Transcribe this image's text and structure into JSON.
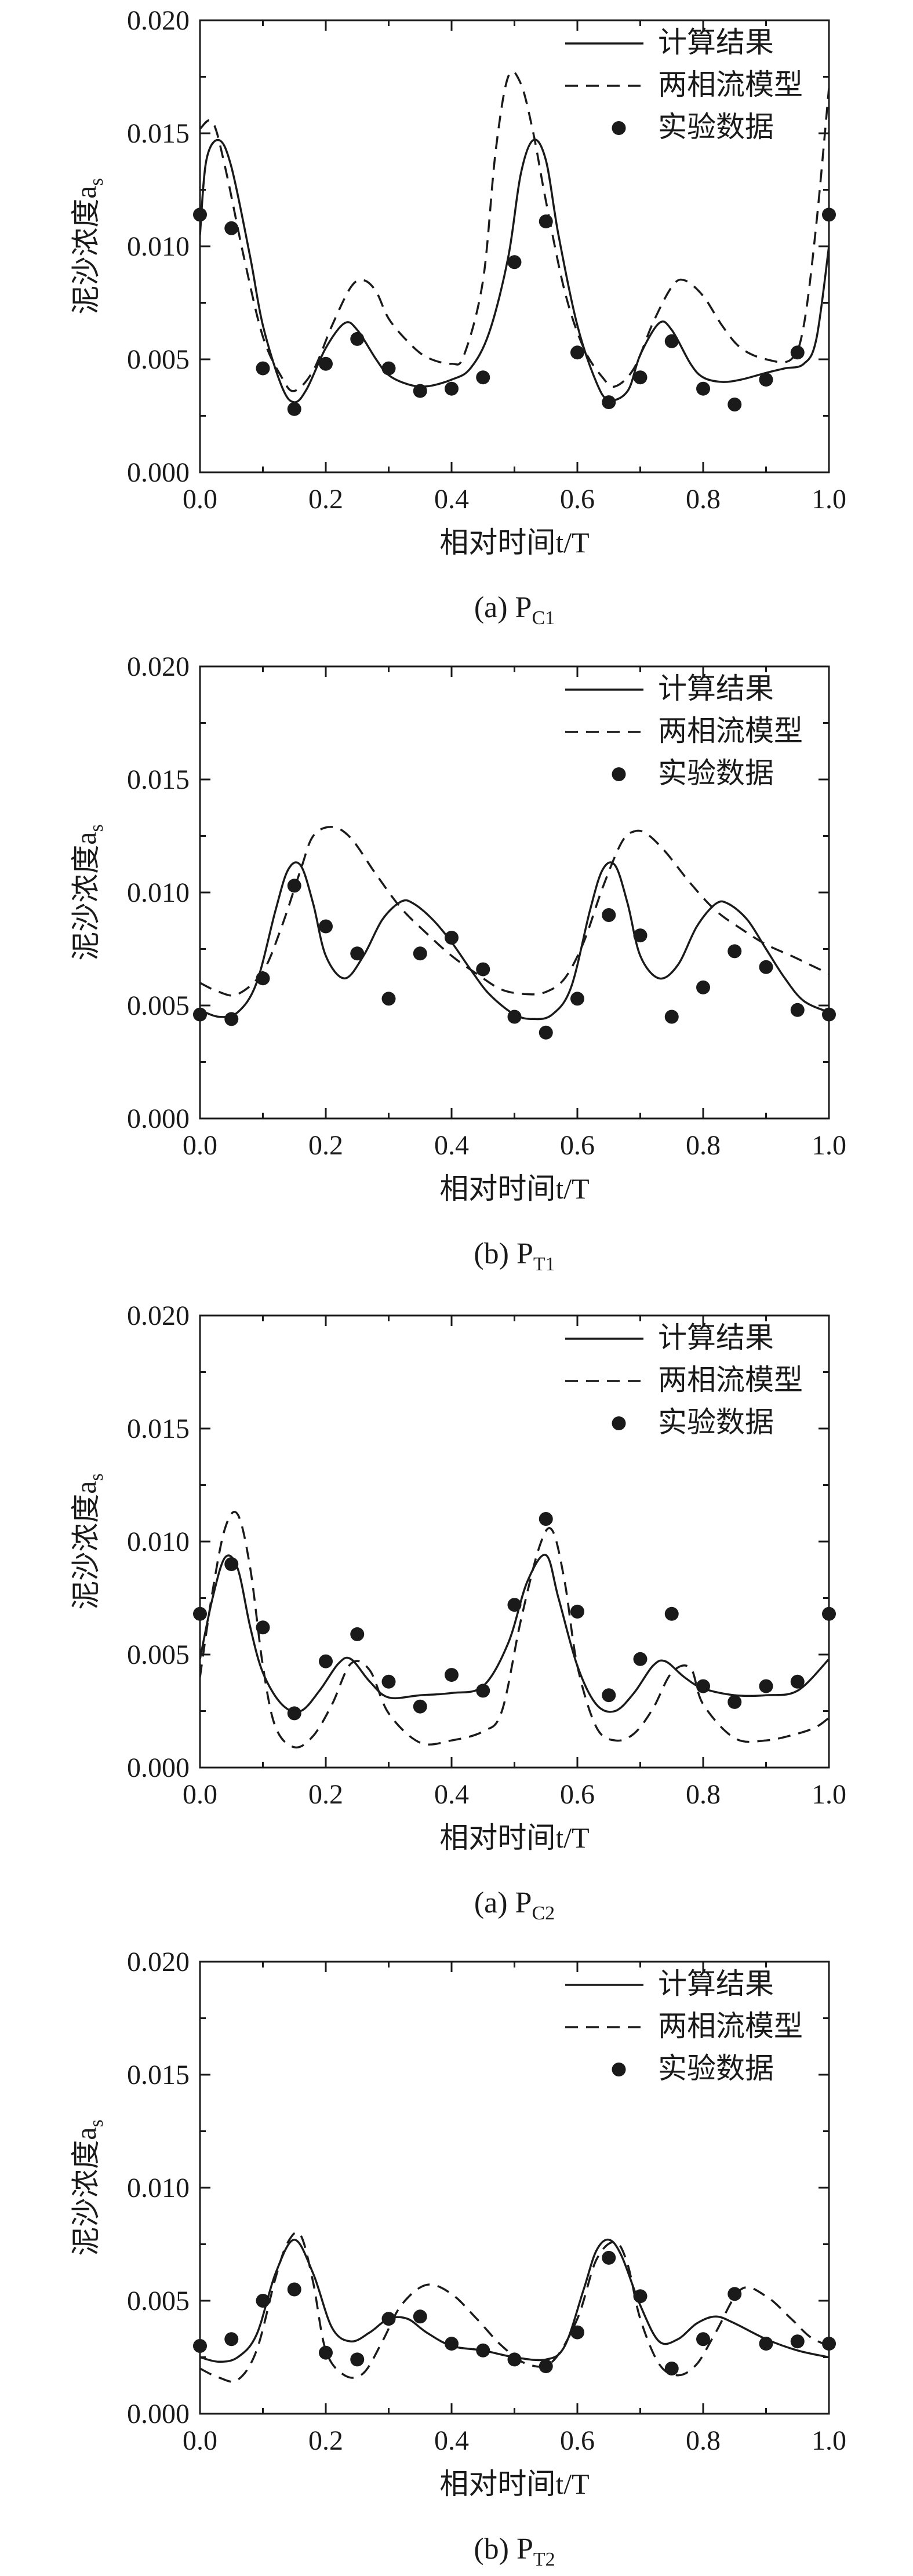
{
  "chart_data": [
    {
      "type": "line",
      "xlabel": "相对时间t/T",
      "ylabel": "泥沙浓度a",
      "ylabel_sub": "s",
      "caption": "(a) P",
      "caption_sub": "C1",
      "xlim": [
        0.0,
        1.0
      ],
      "ylim": [
        0.0,
        0.02
      ],
      "xticks": [
        "0.0",
        "0.2",
        "0.4",
        "0.6",
        "0.8",
        "1.0"
      ],
      "yticks": [
        "0.000",
        "0.005",
        "0.010",
        "0.015",
        "0.020"
      ],
      "legend": [
        "计算结果",
        "两相流模型",
        "实验数据"
      ],
      "legend_position": "top-right",
      "series": [
        {
          "name": "计算结果",
          "style": "solid",
          "x": [
            0.0,
            0.01,
            0.03,
            0.05,
            0.08,
            0.1,
            0.13,
            0.15,
            0.17,
            0.2,
            0.23,
            0.25,
            0.28,
            0.3,
            0.33,
            0.36,
            0.4,
            0.43,
            0.46,
            0.49,
            0.51,
            0.53,
            0.55,
            0.57,
            0.6,
            0.63,
            0.65,
            0.68,
            0.7,
            0.73,
            0.75,
            0.78,
            0.8,
            0.83,
            0.86,
            0.9,
            0.93,
            0.96,
            0.98,
            1.0
          ],
          "y": [
            0.0105,
            0.0138,
            0.0147,
            0.0135,
            0.0095,
            0.0065,
            0.0038,
            0.0031,
            0.0037,
            0.0055,
            0.0066,
            0.0063,
            0.005,
            0.0043,
            0.0039,
            0.0038,
            0.0041,
            0.0046,
            0.0062,
            0.0095,
            0.0132,
            0.0147,
            0.0138,
            0.0105,
            0.0065,
            0.004,
            0.0032,
            0.0036,
            0.0052,
            0.0066,
            0.0063,
            0.0048,
            0.0042,
            0.004,
            0.0041,
            0.0044,
            0.0046,
            0.0048,
            0.0059,
            0.01
          ]
        },
        {
          "name": "两相流模型",
          "style": "dashed",
          "x": [
            0.0,
            0.02,
            0.04,
            0.07,
            0.1,
            0.13,
            0.15,
            0.18,
            0.21,
            0.24,
            0.26,
            0.28,
            0.3,
            0.33,
            0.36,
            0.4,
            0.42,
            0.45,
            0.47,
            0.49,
            0.51,
            0.53,
            0.55,
            0.58,
            0.61,
            0.64,
            0.66,
            0.69,
            0.72,
            0.75,
            0.77,
            0.8,
            0.83,
            0.86,
            0.9,
            0.94,
            0.96,
            0.98,
            1.0
          ],
          "y": [
            0.0152,
            0.0155,
            0.0135,
            0.0095,
            0.006,
            0.0042,
            0.0036,
            0.0045,
            0.0065,
            0.0082,
            0.0085,
            0.008,
            0.0068,
            0.0058,
            0.0051,
            0.0048,
            0.0052,
            0.0085,
            0.0142,
            0.0175,
            0.0172,
            0.015,
            0.012,
            0.008,
            0.0055,
            0.0042,
            0.0038,
            0.0046,
            0.0066,
            0.0082,
            0.0085,
            0.0078,
            0.0065,
            0.0055,
            0.005,
            0.005,
            0.0065,
            0.011,
            0.017
          ]
        },
        {
          "name": "实验数据",
          "style": "markers",
          "x": [
            0.0,
            0.05,
            0.1,
            0.15,
            0.2,
            0.25,
            0.3,
            0.35,
            0.4,
            0.45,
            0.5,
            0.55,
            0.6,
            0.65,
            0.7,
            0.75,
            0.8,
            0.85,
            0.9,
            0.95,
            1.0
          ],
          "y": [
            0.0114,
            0.0108,
            0.0046,
            0.0028,
            0.0048,
            0.0059,
            0.0046,
            0.0036,
            0.0037,
            0.0042,
            0.0093,
            0.0111,
            0.0053,
            0.0031,
            0.0042,
            0.0058,
            0.0037,
            0.003,
            0.0041,
            0.0053,
            0.0114
          ]
        }
      ]
    },
    {
      "type": "line",
      "xlabel": "相对时间t/T",
      "ylabel": "泥沙浓度a",
      "ylabel_sub": "s",
      "caption": "(b) P",
      "caption_sub": "T1",
      "xlim": [
        0.0,
        1.0
      ],
      "ylim": [
        0.0,
        0.02
      ],
      "xticks": [
        "0.0",
        "0.2",
        "0.4",
        "0.6",
        "0.8",
        "1.0"
      ],
      "yticks": [
        "0.000",
        "0.005",
        "0.010",
        "0.015",
        "0.020"
      ],
      "legend": [
        "计算结果",
        "两相流模型",
        "实验数据"
      ],
      "legend_position": "top-right",
      "series": [
        {
          "name": "计算结果",
          "style": "solid",
          "x": [
            0.0,
            0.03,
            0.06,
            0.09,
            0.12,
            0.14,
            0.16,
            0.18,
            0.2,
            0.23,
            0.26,
            0.29,
            0.32,
            0.34,
            0.37,
            0.4,
            0.43,
            0.46,
            0.5,
            0.53,
            0.56,
            0.59,
            0.62,
            0.64,
            0.66,
            0.68,
            0.7,
            0.73,
            0.76,
            0.79,
            0.82,
            0.84,
            0.87,
            0.9,
            0.93,
            0.96,
            1.0
          ],
          "y": [
            0.0048,
            0.0045,
            0.0047,
            0.006,
            0.0092,
            0.011,
            0.0112,
            0.0095,
            0.0072,
            0.0062,
            0.0072,
            0.0088,
            0.0096,
            0.0095,
            0.0088,
            0.0078,
            0.0066,
            0.0055,
            0.0046,
            0.0044,
            0.0046,
            0.0058,
            0.0092,
            0.011,
            0.0112,
            0.0095,
            0.0072,
            0.0062,
            0.0068,
            0.0085,
            0.0095,
            0.0095,
            0.0088,
            0.0075,
            0.0062,
            0.0052,
            0.0047
          ]
        },
        {
          "name": "两相流模型",
          "style": "dashed",
          "x": [
            0.0,
            0.03,
            0.06,
            0.1,
            0.13,
            0.16,
            0.18,
            0.21,
            0.24,
            0.28,
            0.32,
            0.36,
            0.4,
            0.44,
            0.48,
            0.52,
            0.55,
            0.58,
            0.61,
            0.64,
            0.67,
            0.69,
            0.71,
            0.74,
            0.78,
            0.82,
            0.86,
            0.9,
            0.94,
            0.97,
            1.0
          ],
          "y": [
            0.006,
            0.0056,
            0.0055,
            0.0065,
            0.0085,
            0.011,
            0.0125,
            0.0129,
            0.0124,
            0.0108,
            0.0093,
            0.0082,
            0.0072,
            0.0064,
            0.0057,
            0.0055,
            0.0056,
            0.0062,
            0.0078,
            0.0102,
            0.0122,
            0.0127,
            0.0126,
            0.0118,
            0.0104,
            0.0092,
            0.0084,
            0.0077,
            0.0072,
            0.0068,
            0.0064
          ]
        },
        {
          "name": "实验数据",
          "style": "markers",
          "x": [
            0.0,
            0.05,
            0.1,
            0.15,
            0.2,
            0.25,
            0.3,
            0.35,
            0.4,
            0.45,
            0.5,
            0.55,
            0.6,
            0.65,
            0.7,
            0.75,
            0.8,
            0.85,
            0.9,
            0.95,
            1.0
          ],
          "y": [
            0.0046,
            0.0044,
            0.0062,
            0.0103,
            0.0085,
            0.0073,
            0.0053,
            0.0073,
            0.008,
            0.0066,
            0.0045,
            0.0038,
            0.0053,
            0.009,
            0.0081,
            0.0045,
            0.0058,
            0.0074,
            0.0067,
            0.0048,
            0.0046
          ]
        }
      ]
    },
    {
      "type": "line",
      "xlabel": "相对时间t/T",
      "ylabel": "泥沙浓度a",
      "ylabel_sub": "s",
      "caption": "(a) P",
      "caption_sub": "C2",
      "xlim": [
        0.0,
        1.0
      ],
      "ylim": [
        0.0,
        0.02
      ],
      "xticks": [
        "0.0",
        "0.2",
        "0.4",
        "0.6",
        "0.8",
        "1.0"
      ],
      "yticks": [
        "0.000",
        "0.005",
        "0.010",
        "0.015",
        "0.020"
      ],
      "legend": [
        "计算结果",
        "两相流模型",
        "实验数据"
      ],
      "legend_position": "top-right",
      "series": [
        {
          "name": "计算结果",
          "style": "solid",
          "x": [
            0.0,
            0.02,
            0.04,
            0.06,
            0.08,
            0.1,
            0.13,
            0.16,
            0.19,
            0.22,
            0.24,
            0.27,
            0.3,
            0.35,
            0.4,
            0.45,
            0.49,
            0.52,
            0.55,
            0.57,
            0.6,
            0.63,
            0.66,
            0.69,
            0.72,
            0.74,
            0.77,
            0.8,
            0.85,
            0.9,
            0.95,
            1.0
          ],
          "y": [
            0.0048,
            0.0075,
            0.0093,
            0.0088,
            0.0062,
            0.0042,
            0.0028,
            0.0025,
            0.0034,
            0.0046,
            0.0048,
            0.0038,
            0.0031,
            0.0032,
            0.0033,
            0.0036,
            0.0055,
            0.0082,
            0.0094,
            0.0075,
            0.0045,
            0.0028,
            0.0025,
            0.0033,
            0.0045,
            0.0047,
            0.004,
            0.0035,
            0.0032,
            0.0032,
            0.0034,
            0.0048
          ]
        },
        {
          "name": "两相流模型",
          "style": "dashed",
          "x": [
            0.0,
            0.02,
            0.04,
            0.06,
            0.08,
            0.1,
            0.12,
            0.15,
            0.18,
            0.21,
            0.24,
            0.27,
            0.3,
            0.35,
            0.4,
            0.45,
            0.48,
            0.51,
            0.54,
            0.56,
            0.58,
            0.6,
            0.63,
            0.66,
            0.69,
            0.72,
            0.75,
            0.78,
            0.8,
            0.85,
            0.9,
            0.95,
            0.98,
            1.0
          ],
          "y": [
            0.004,
            0.0078,
            0.0106,
            0.0112,
            0.0088,
            0.0045,
            0.0018,
            0.0009,
            0.0014,
            0.0028,
            0.0046,
            0.0043,
            0.0024,
            0.0011,
            0.0012,
            0.0016,
            0.0025,
            0.0065,
            0.0098,
            0.0105,
            0.0082,
            0.0045,
            0.0018,
            0.0012,
            0.0015,
            0.0026,
            0.0042,
            0.0044,
            0.0028,
            0.0013,
            0.0012,
            0.0015,
            0.0018,
            0.0022
          ]
        },
        {
          "name": "实验数据",
          "style": "markers",
          "x": [
            0.0,
            0.05,
            0.1,
            0.15,
            0.2,
            0.25,
            0.3,
            0.35,
            0.4,
            0.45,
            0.5,
            0.55,
            0.6,
            0.65,
            0.7,
            0.75,
            0.8,
            0.85,
            0.9,
            0.95,
            1.0
          ],
          "y": [
            0.0068,
            0.009,
            0.0062,
            0.0024,
            0.0047,
            0.0059,
            0.0038,
            0.0027,
            0.0041,
            0.0034,
            0.0072,
            0.011,
            0.0069,
            0.0032,
            0.0048,
            0.0068,
            0.0036,
            0.0029,
            0.0036,
            0.0038,
            0.0068
          ]
        }
      ]
    },
    {
      "type": "line",
      "xlabel": "相对时间t/T",
      "ylabel": "泥沙浓度a",
      "ylabel_sub": "s",
      "caption": "(b) P",
      "caption_sub": "T2",
      "xlim": [
        0.0,
        1.0
      ],
      "ylim": [
        0.0,
        0.02
      ],
      "xticks": [
        "0.0",
        "0.2",
        "0.4",
        "0.6",
        "0.8",
        "1.0"
      ],
      "yticks": [
        "0.000",
        "0.005",
        "0.010",
        "0.015",
        "0.020"
      ],
      "legend": [
        "计算结果",
        "两相流模型",
        "实验数据"
      ],
      "legend_position": "top-right",
      "series": [
        {
          "name": "计算结果",
          "style": "solid",
          "x": [
            0.0,
            0.03,
            0.06,
            0.09,
            0.12,
            0.15,
            0.18,
            0.21,
            0.24,
            0.27,
            0.3,
            0.33,
            0.36,
            0.4,
            0.45,
            0.5,
            0.55,
            0.58,
            0.61,
            0.63,
            0.65,
            0.67,
            0.7,
            0.73,
            0.76,
            0.79,
            0.82,
            0.85,
            0.9,
            0.95,
            1.0
          ],
          "y": [
            0.0025,
            0.0023,
            0.0025,
            0.0035,
            0.0062,
            0.0077,
            0.0062,
            0.0038,
            0.0032,
            0.0036,
            0.0042,
            0.0042,
            0.0036,
            0.003,
            0.0028,
            0.0025,
            0.0024,
            0.003,
            0.0055,
            0.0072,
            0.0077,
            0.007,
            0.0048,
            0.0032,
            0.0033,
            0.004,
            0.0043,
            0.004,
            0.0033,
            0.0028,
            0.0025
          ]
        },
        {
          "name": "两相流模型",
          "style": "dashed",
          "x": [
            0.0,
            0.03,
            0.06,
            0.09,
            0.12,
            0.14,
            0.16,
            0.18,
            0.2,
            0.23,
            0.26,
            0.29,
            0.32,
            0.36,
            0.4,
            0.44,
            0.48,
            0.52,
            0.56,
            0.6,
            0.63,
            0.66,
            0.68,
            0.7,
            0.73,
            0.76,
            0.79,
            0.82,
            0.86,
            0.9,
            0.94,
            0.97,
            1.0
          ],
          "y": [
            0.002,
            0.0016,
            0.0015,
            0.0028,
            0.006,
            0.0076,
            0.0079,
            0.0058,
            0.0028,
            0.0017,
            0.0018,
            0.0032,
            0.0048,
            0.0057,
            0.0053,
            0.0042,
            0.003,
            0.0022,
            0.0023,
            0.0042,
            0.0068,
            0.0076,
            0.0066,
            0.0042,
            0.0022,
            0.0017,
            0.0022,
            0.0036,
            0.0055,
            0.0052,
            0.0042,
            0.0034,
            0.003
          ]
        },
        {
          "name": "实验数据",
          "style": "markers",
          "x": [
            0.0,
            0.05,
            0.1,
            0.15,
            0.2,
            0.25,
            0.3,
            0.35,
            0.4,
            0.45,
            0.5,
            0.55,
            0.6,
            0.65,
            0.7,
            0.75,
            0.8,
            0.85,
            0.9,
            0.95,
            1.0
          ],
          "y": [
            0.003,
            0.0033,
            0.005,
            0.0055,
            0.0027,
            0.0024,
            0.0042,
            0.0043,
            0.0031,
            0.0028,
            0.0024,
            0.0021,
            0.0036,
            0.0069,
            0.0052,
            0.002,
            0.0033,
            0.0053,
            0.0031,
            0.0032,
            0.0031
          ]
        }
      ]
    }
  ]
}
